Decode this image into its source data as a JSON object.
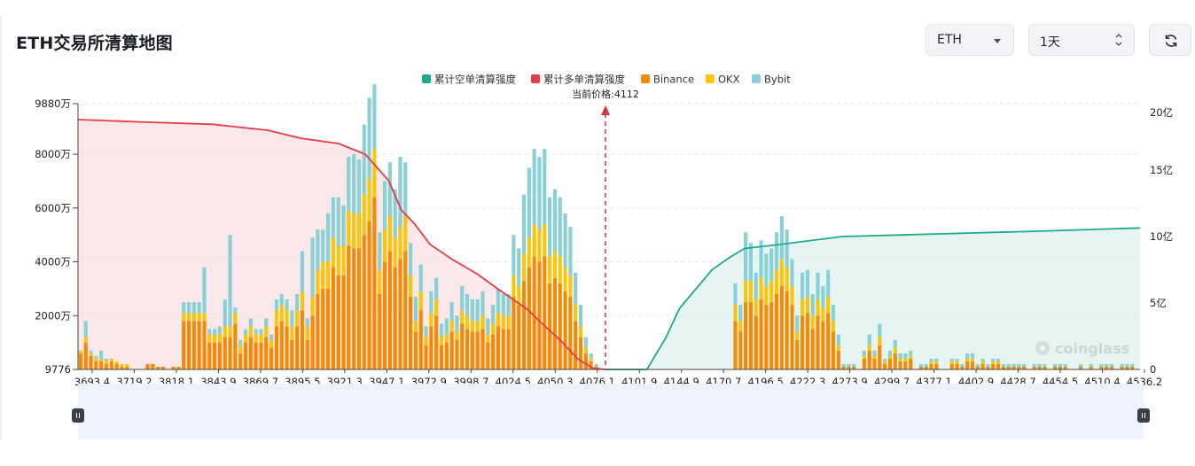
{
  "header": {
    "title": "ETH交易所清算地图",
    "coin_select": "ETH",
    "range_select": "1天"
  },
  "icons": {
    "coin_caret": "chevron-down-icon",
    "range_caret": "up-down-icon",
    "refresh": "refresh-icon",
    "watermark": "coinglass-logo-icon",
    "slider_handles": "drag-handle-icon"
  },
  "watermark": "coinglass",
  "colors": {
    "short_cum": "#1eab8d",
    "long_cum": "#e83b47",
    "binance": "#f58a07",
    "okx": "#f8c50f",
    "bybit": "#89d1d6",
    "long_area": "#fbe8ea",
    "short_area": "#e6f5f1",
    "slider_bg": "#eef2fc"
  },
  "chart_data": {
    "type": "bar",
    "title": "ETH交易所清算地图",
    "current_price_label": "当前价格:4112",
    "current_price": 4112,
    "legend": [
      "累计空单清算强度",
      "累计多单清算强度",
      "Binance",
      "OKX",
      "Bybit"
    ],
    "legend_position": "top-center",
    "y_left_ticks": [
      "9776",
      "2000万",
      "4000万",
      "6000万",
      "8000万",
      "9880万"
    ],
    "y_right_ticks": [
      "0",
      "5亿",
      "10亿",
      "15亿",
      "20亿"
    ],
    "y_left_range": [
      0,
      98800000
    ],
    "y_right_range": [
      0,
      2000000000
    ],
    "x_tick_labels": [
      "3693.4",
      "3719.2",
      "3818.1",
      "3843.9",
      "3869.7",
      "3895.5",
      "3921.3",
      "3947.1",
      "3972.9",
      "3998.7",
      "4024.5",
      "4050.3",
      "4076.1",
      "4101.9",
      "4144.9",
      "4170.7",
      "4196.5",
      "4222.3",
      "4273.9",
      "4299.7",
      "4377.1",
      "4402.9",
      "4428.7",
      "4454.5",
      "4510.4",
      "4536.2"
    ],
    "x_range": [
      3693.4,
      4536.2
    ],
    "grid": "horizontal-dashed",
    "bars_unit": "万",
    "series": [
      {
        "name": "Binance",
        "values": [
          6,
          10,
          5,
          3,
          3,
          2,
          3,
          2,
          1,
          1,
          0,
          0,
          0,
          2,
          2,
          1,
          1,
          0,
          1,
          1,
          18,
          18,
          18,
          18,
          18,
          10,
          10,
          10,
          12,
          12,
          17,
          6,
          10,
          12,
          10,
          10,
          12,
          8,
          16,
          18,
          16,
          11,
          16,
          22,
          11,
          20,
          28,
          30,
          30,
          38,
          35,
          35,
          46,
          45,
          45,
          50,
          55,
          64,
          28,
          40,
          44,
          38,
          41,
          44,
          27,
          14,
          22,
          9,
          16,
          20,
          9,
          10,
          14,
          11,
          17,
          15,
          14,
          14,
          15,
          10,
          13,
          16,
          15,
          15,
          27,
          24,
          33,
          38,
          42,
          40,
          42,
          32,
          34,
          32,
          29,
          27,
          18,
          12,
          6,
          3,
          1,
          0,
          0,
          0,
          0,
          0,
          0,
          0,
          0,
          0,
          0,
          0,
          0,
          0,
          0,
          0,
          0,
          0,
          0,
          0,
          0,
          0,
          0,
          0,
          0,
          0,
          0,
          18,
          14,
          25,
          25,
          20,
          26,
          24,
          25,
          28,
          31,
          29,
          24,
          11,
          20,
          21,
          15,
          20,
          18,
          21,
          14,
          7,
          1,
          1,
          1,
          0,
          4,
          7,
          4,
          9,
          2,
          4,
          6,
          3,
          3,
          4,
          0,
          1,
          1,
          2,
          2,
          0,
          0,
          2,
          2,
          1,
          3,
          3,
          1,
          2,
          1,
          2,
          2,
          1,
          1,
          1,
          1,
          1,
          0,
          1,
          1,
          1,
          0,
          1,
          1,
          1,
          0,
          0,
          1,
          0,
          1,
          0,
          1,
          1,
          1,
          0,
          1,
          1,
          1,
          0
        ]
      },
      {
        "name": "OKX",
        "values": [
          1,
          2,
          1,
          1,
          1,
          1,
          1,
          1,
          1,
          1,
          0,
          0,
          0,
          0,
          0,
          0,
          0,
          0,
          0,
          0,
          3,
          3,
          3,
          3,
          3,
          3,
          3,
          3,
          4,
          4,
          4,
          3,
          3,
          4,
          3,
          3,
          4,
          3,
          6,
          6,
          6,
          5,
          6,
          7,
          5,
          7,
          9,
          10,
          10,
          11,
          11,
          11,
          13,
          13,
          13,
          15,
          16,
          18,
          9,
          12,
          13,
          11,
          12,
          13,
          8,
          4,
          7,
          3,
          5,
          6,
          3,
          3,
          4,
          3,
          5,
          5,
          4,
          4,
          5,
          3,
          4,
          5,
          5,
          5,
          8,
          7,
          10,
          11,
          12,
          12,
          12,
          10,
          10,
          10,
          9,
          8,
          6,
          4,
          2,
          1,
          0,
          0,
          0,
          0,
          0,
          0,
          0,
          0,
          0,
          0,
          0,
          0,
          0,
          0,
          0,
          0,
          0,
          0,
          0,
          0,
          0,
          0,
          0,
          0,
          0,
          0,
          0,
          6,
          4,
          8,
          8,
          6,
          8,
          7,
          8,
          9,
          10,
          9,
          7,
          3,
          6,
          6,
          5,
          6,
          5,
          6,
          4,
          2,
          0,
          0,
          0,
          0,
          1,
          2,
          1,
          3,
          1,
          1,
          2,
          1,
          1,
          1,
          0,
          0,
          0,
          1,
          1,
          0,
          0,
          1,
          1,
          0,
          1,
          1,
          0,
          1,
          0,
          1,
          1,
          0,
          0,
          0,
          0,
          0,
          0,
          0,
          0,
          0,
          0,
          0,
          0,
          0,
          0,
          0,
          0,
          0,
          0,
          0,
          0,
          0,
          0,
          0,
          0,
          0,
          0,
          0
        ]
      },
      {
        "name": "Bybit",
        "values": [
          0,
          6,
          1,
          1,
          3,
          1,
          0,
          0,
          0,
          0,
          0,
          0,
          0,
          0,
          0,
          0,
          0,
          0,
          0,
          0,
          4,
          4,
          4,
          4,
          17,
          2,
          2,
          3,
          10,
          34,
          2,
          2,
          2,
          3,
          2,
          2,
          3,
          2,
          4,
          4,
          4,
          6,
          6,
          15,
          3,
          22,
          15,
          12,
          18,
          15,
          18,
          15,
          20,
          22,
          20,
          26,
          30,
          24,
          14,
          18,
          20,
          18,
          26,
          20,
          12,
          9,
          10,
          4,
          8,
          8,
          5,
          6,
          7,
          6,
          9,
          8,
          8,
          8,
          9,
          6,
          7,
          9,
          8,
          8,
          15,
          14,
          22,
          26,
          28,
          27,
          28,
          22,
          23,
          22,
          20,
          18,
          12,
          8,
          4,
          2,
          1,
          0,
          0,
          0,
          0,
          0,
          0,
          0,
          0,
          0,
          0,
          0,
          0,
          0,
          0,
          0,
          0,
          0,
          0,
          0,
          0,
          0,
          0,
          0,
          0,
          0,
          0,
          8,
          6,
          18,
          14,
          10,
          14,
          12,
          12,
          14,
          16,
          14,
          10,
          6,
          10,
          10,
          8,
          10,
          8,
          10,
          6,
          4,
          1,
          1,
          1,
          0,
          2,
          4,
          2,
          5,
          1,
          2,
          3,
          2,
          2,
          2,
          0,
          1,
          1,
          1,
          1,
          0,
          0,
          1,
          1,
          1,
          2,
          2,
          1,
          1,
          1,
          1,
          1,
          1,
          1,
          1,
          1,
          1,
          0,
          1,
          1,
          1,
          0,
          1,
          1,
          1,
          0,
          0,
          1,
          0,
          1,
          0,
          1,
          1,
          1,
          0,
          1,
          1,
          1,
          0
        ]
      },
      {
        "name": "累计多单清算强度",
        "x": [
          3693.4,
          3750,
          3800,
          3843.9,
          3870,
          3900,
          3921.3,
          3940,
          3950,
          3960,
          3972.9,
          3990,
          4010,
          4024.5,
          4050.3,
          4060,
          4076.1,
          4090,
          4101.9,
          4112
        ],
        "values": [
          1880000000,
          1860000000,
          1845000000,
          1800000000,
          1740000000,
          1700000000,
          1620000000,
          1420000000,
          1200000000,
          1100000000,
          940000000,
          830000000,
          720000000,
          620000000,
          450000000,
          360000000,
          220000000,
          80000000,
          10000000,
          0
        ]
      },
      {
        "name": "累计空单清算强度",
        "x": [
          4112,
          4144.9,
          4160,
          4170.7,
          4185,
          4196.5,
          4210,
          4222.3,
          4250,
          4299.7,
          4377.1,
          4454.5,
          4536.2
        ],
        "values": [
          0,
          0,
          240000000,
          460000000,
          620000000,
          750000000,
          840000000,
          910000000,
          940000000,
          1000000000,
          1020000000,
          1040000000,
          1065000000
        ]
      }
    ]
  }
}
